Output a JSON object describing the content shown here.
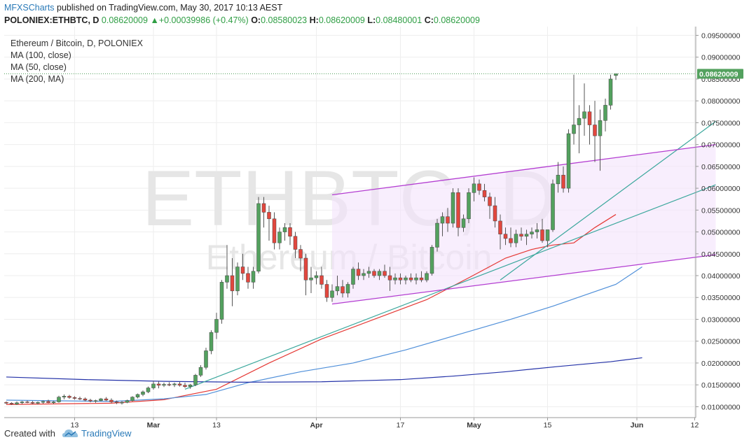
{
  "header": {
    "publisher": "MFXSCharts",
    "published_text": "published on TradingView.com, May 30, 2017 10:13 AEST",
    "symbol": "POLONIEX:ETHBTC, D",
    "price": "0.08620009",
    "change": "+0.00039986 (+0.47%)",
    "o_label": "O:",
    "o_value": "0.08580023",
    "h_label": "H:",
    "h_value": "0.08620009",
    "l_label": "L:",
    "l_value": "0.08480001",
    "c_label": "C:",
    "c_value": "0.08620009"
  },
  "legend": {
    "title": "Ethereum / Bitcoin, D, POLONIEX",
    "ma100": "MA (100, close)",
    "ma50": "MA (50, close)",
    "ma200": "MA (200, MA)"
  },
  "watermark": {
    "big": "ETHBTC, D",
    "small": "Ethereum / Bitcoin"
  },
  "footer": {
    "created_with": "Created with",
    "brand": "TradingView"
  },
  "colors": {
    "up": "#53a15e",
    "down": "#e2473e",
    "ma20": "#e53935",
    "ma50": "#4f8fd9",
    "ma200": "#2432a8",
    "trend": "#3aa79c",
    "channel": "#b33dd1",
    "channel_fill": "#f3e3fb",
    "last_price_bg": "#53a15e"
  },
  "chart_data": {
    "type": "candlestick",
    "title": "Ethereum / Bitcoin, D, POLONIEX",
    "y_range": [
      0.0075,
      0.097
    ],
    "y_ticks": [
      "0.09500000",
      "0.09000000",
      "0.08500000",
      "0.08000000",
      "0.07500000",
      "0.07000000",
      "0.06500000",
      "0.06000000",
      "0.05500000",
      "0.05000000",
      "0.04500000",
      "0.04000000",
      "0.03500000",
      "0.03000000",
      "0.02500000",
      "0.02000000",
      "0.01500000",
      "0.01000000"
    ],
    "last_price": "0.08620009",
    "x_labels": [
      {
        "label": "13",
        "bold": false,
        "day": 13
      },
      {
        "label": "Mar",
        "bold": true,
        "day": 28
      },
      {
        "label": "13",
        "bold": false,
        "day": 40
      },
      {
        "label": "Apr",
        "bold": true,
        "day": 59
      },
      {
        "label": "17",
        "bold": false,
        "day": 75
      },
      {
        "label": "May",
        "bold": true,
        "day": 89
      },
      {
        "label": "15",
        "bold": false,
        "day": 103
      },
      {
        "label": "Jun",
        "bold": true,
        "day": 120
      },
      {
        "label": "12",
        "bold": false,
        "day": 131
      }
    ],
    "date_axis": {
      "start": "2017-02-01",
      "end": "2017-06-15"
    },
    "candles": [
      [
        0.011,
        0.0112,
        0.0106,
        0.0108
      ],
      [
        0.0108,
        0.011,
        0.0104,
        0.0106
      ],
      [
        0.0106,
        0.0112,
        0.0104,
        0.0109
      ],
      [
        0.0109,
        0.0113,
        0.0106,
        0.0111
      ],
      [
        0.0111,
        0.0114,
        0.0108,
        0.011
      ],
      [
        0.011,
        0.0113,
        0.0106,
        0.0108
      ],
      [
        0.0108,
        0.0112,
        0.0105,
        0.011
      ],
      [
        0.011,
        0.0114,
        0.0107,
        0.0112
      ],
      [
        0.0112,
        0.0116,
        0.0108,
        0.0109
      ],
      [
        0.0109,
        0.0113,
        0.0106,
        0.0111
      ],
      [
        0.0111,
        0.0125,
        0.0109,
        0.0122
      ],
      [
        0.0122,
        0.0128,
        0.0117,
        0.0124
      ],
      [
        0.0124,
        0.0127,
        0.0118,
        0.0121
      ],
      [
        0.0121,
        0.0124,
        0.0116,
        0.0119
      ],
      [
        0.0119,
        0.0123,
        0.0115,
        0.0118
      ],
      [
        0.0118,
        0.0121,
        0.0112,
        0.0115
      ],
      [
        0.0115,
        0.0118,
        0.011,
        0.0113
      ],
      [
        0.0113,
        0.0116,
        0.0109,
        0.0114
      ],
      [
        0.0114,
        0.012,
        0.0112,
        0.0118
      ],
      [
        0.0118,
        0.0122,
        0.0113,
        0.0115
      ],
      [
        0.0115,
        0.0119,
        0.0108,
        0.0111
      ],
      [
        0.0111,
        0.0114,
        0.0106,
        0.0109
      ],
      [
        0.0109,
        0.0113,
        0.0105,
        0.011
      ],
      [
        0.011,
        0.0116,
        0.0108,
        0.0114
      ],
      [
        0.0114,
        0.0124,
        0.0112,
        0.0122
      ],
      [
        0.0122,
        0.013,
        0.0119,
        0.0128
      ],
      [
        0.0128,
        0.0137,
        0.0124,
        0.0134
      ],
      [
        0.0134,
        0.0146,
        0.0131,
        0.0143
      ],
      [
        0.0143,
        0.0159,
        0.0139,
        0.0152
      ],
      [
        0.0152,
        0.0158,
        0.0142,
        0.0149
      ],
      [
        0.0149,
        0.0155,
        0.0145,
        0.0151
      ],
      [
        0.0151,
        0.0156,
        0.0147,
        0.015
      ],
      [
        0.015,
        0.0155,
        0.0145,
        0.0152
      ],
      [
        0.0152,
        0.0157,
        0.0146,
        0.0149
      ],
      [
        0.0149,
        0.0155,
        0.0143,
        0.0146
      ],
      [
        0.0146,
        0.0152,
        0.0141,
        0.015
      ],
      [
        0.015,
        0.0175,
        0.0147,
        0.0172
      ],
      [
        0.0172,
        0.0195,
        0.0168,
        0.019
      ],
      [
        0.019,
        0.0235,
        0.0185,
        0.0228
      ],
      [
        0.0228,
        0.0275,
        0.022,
        0.027
      ],
      [
        0.027,
        0.0315,
        0.0255,
        0.03
      ],
      [
        0.03,
        0.039,
        0.029,
        0.0385
      ],
      [
        0.0385,
        0.047,
        0.037,
        0.04
      ],
      [
        0.04,
        0.044,
        0.033,
        0.0365
      ],
      [
        0.0365,
        0.043,
        0.0355,
        0.042
      ],
      [
        0.042,
        0.045,
        0.039,
        0.0405
      ],
      [
        0.0405,
        0.042,
        0.037,
        0.0385
      ],
      [
        0.0385,
        0.042,
        0.037,
        0.041
      ],
      [
        0.041,
        0.058,
        0.0405,
        0.0565
      ],
      [
        0.0565,
        0.058,
        0.051,
        0.0545
      ],
      [
        0.0545,
        0.056,
        0.048,
        0.053
      ],
      [
        0.053,
        0.0545,
        0.046,
        0.0475
      ],
      [
        0.0475,
        0.051,
        0.046,
        0.05
      ],
      [
        0.05,
        0.052,
        0.048,
        0.051
      ],
      [
        0.051,
        0.052,
        0.047,
        0.049
      ],
      [
        0.049,
        0.05,
        0.044,
        0.046
      ],
      [
        0.046,
        0.047,
        0.041,
        0.044
      ],
      [
        0.044,
        0.045,
        0.0355,
        0.039
      ],
      [
        0.039,
        0.042,
        0.036,
        0.0395
      ],
      [
        0.0395,
        0.041,
        0.038,
        0.04
      ],
      [
        0.04,
        0.042,
        0.037,
        0.038
      ],
      [
        0.038,
        0.039,
        0.034,
        0.035
      ],
      [
        0.035,
        0.038,
        0.034,
        0.0365
      ],
      [
        0.0365,
        0.04,
        0.0355,
        0.0375
      ],
      [
        0.0375,
        0.039,
        0.035,
        0.036
      ],
      [
        0.036,
        0.0385,
        0.035,
        0.038
      ],
      [
        0.038,
        0.042,
        0.037,
        0.0415
      ],
      [
        0.0415,
        0.043,
        0.039,
        0.04
      ],
      [
        0.04,
        0.0415,
        0.039,
        0.0405
      ],
      [
        0.0405,
        0.042,
        0.0395,
        0.041
      ],
      [
        0.041,
        0.0415,
        0.0395,
        0.04
      ],
      [
        0.04,
        0.0415,
        0.039,
        0.041
      ],
      [
        0.041,
        0.0425,
        0.0395,
        0.04
      ],
      [
        0.04,
        0.042,
        0.0365,
        0.039
      ],
      [
        0.039,
        0.0405,
        0.038,
        0.0395
      ],
      [
        0.0395,
        0.0405,
        0.038,
        0.039
      ],
      [
        0.039,
        0.04,
        0.038,
        0.0395
      ],
      [
        0.0395,
        0.0405,
        0.0385,
        0.039
      ],
      [
        0.039,
        0.0405,
        0.038,
        0.0395
      ],
      [
        0.0395,
        0.041,
        0.0385,
        0.039
      ],
      [
        0.039,
        0.041,
        0.0385,
        0.0405
      ],
      [
        0.0405,
        0.047,
        0.04,
        0.0465
      ],
      [
        0.0465,
        0.053,
        0.0455,
        0.052
      ],
      [
        0.052,
        0.0545,
        0.049,
        0.0535
      ],
      [
        0.0535,
        0.0555,
        0.05,
        0.052
      ],
      [
        0.052,
        0.06,
        0.051,
        0.059
      ],
      [
        0.059,
        0.06,
        0.049,
        0.051
      ],
      [
        0.051,
        0.054,
        0.05,
        0.053
      ],
      [
        0.053,
        0.06,
        0.052,
        0.059
      ],
      [
        0.059,
        0.0625,
        0.057,
        0.061
      ],
      [
        0.061,
        0.062,
        0.0585,
        0.0595
      ],
      [
        0.0595,
        0.061,
        0.057,
        0.058
      ],
      [
        0.058,
        0.059,
        0.053,
        0.056
      ],
      [
        0.056,
        0.058,
        0.051,
        0.0525
      ],
      [
        0.0525,
        0.054,
        0.046,
        0.0495
      ],
      [
        0.0495,
        0.051,
        0.047,
        0.0485
      ],
      [
        0.0485,
        0.051,
        0.0465,
        0.0475
      ],
      [
        0.0475,
        0.0505,
        0.0465,
        0.0495
      ],
      [
        0.0495,
        0.051,
        0.048,
        0.049
      ],
      [
        0.049,
        0.0505,
        0.047,
        0.0495
      ],
      [
        0.0495,
        0.051,
        0.0485,
        0.05
      ],
      [
        0.05,
        0.052,
        0.0485,
        0.0505
      ],
      [
        0.0505,
        0.053,
        0.0475,
        0.048
      ],
      [
        0.048,
        0.05,
        0.0465,
        0.0505
      ],
      [
        0.0505,
        0.062,
        0.05,
        0.061
      ],
      [
        0.061,
        0.066,
        0.059,
        0.063
      ],
      [
        0.063,
        0.065,
        0.059,
        0.06
      ],
      [
        0.06,
        0.0735,
        0.059,
        0.0725
      ],
      [
        0.0725,
        0.086,
        0.07,
        0.0745
      ],
      [
        0.0745,
        0.079,
        0.068,
        0.076
      ],
      [
        0.076,
        0.084,
        0.072,
        0.0775
      ],
      [
        0.0775,
        0.079,
        0.07,
        0.0745
      ],
      [
        0.0745,
        0.08,
        0.066,
        0.072
      ],
      [
        0.072,
        0.078,
        0.064,
        0.0755
      ],
      [
        0.0755,
        0.0805,
        0.073,
        0.079
      ],
      [
        0.079,
        0.086,
        0.078,
        0.085
      ],
      [
        0.0858,
        0.0862,
        0.0848,
        0.0862
      ]
    ],
    "moving_averages": [
      {
        "name": "MA (100, close)",
        "color": "#e53935",
        "points": [
          [
            0,
            0.0105
          ],
          [
            20,
            0.0108
          ],
          [
            30,
            0.0116
          ],
          [
            40,
            0.014
          ],
          [
            50,
            0.02
          ],
          [
            60,
            0.0255
          ],
          [
            70,
            0.03
          ],
          [
            80,
            0.0345
          ],
          [
            88,
            0.0395
          ],
          [
            95,
            0.044
          ],
          [
            100,
            0.046
          ],
          [
            104,
            0.047
          ],
          [
            108,
            0.0475
          ],
          [
            112,
            0.051
          ],
          [
            116,
            0.054
          ]
        ]
      },
      {
        "name": "MA (50, close)",
        "color": "#4f8fd9",
        "points": [
          [
            0,
            0.0115
          ],
          [
            20,
            0.0112
          ],
          [
            30,
            0.0118
          ],
          [
            38,
            0.0128
          ],
          [
            46,
            0.0155
          ],
          [
            56,
            0.018
          ],
          [
            66,
            0.02
          ],
          [
            76,
            0.023
          ],
          [
            86,
            0.0265
          ],
          [
            96,
            0.03
          ],
          [
            104,
            0.033
          ],
          [
            110,
            0.0355
          ],
          [
            116,
            0.038
          ],
          [
            121,
            0.042
          ]
        ]
      },
      {
        "name": "MA (200, MA)",
        "color": "#2432a8",
        "points": [
          [
            0,
            0.0168
          ],
          [
            15,
            0.0162
          ],
          [
            30,
            0.0158
          ],
          [
            45,
            0.0156
          ],
          [
            60,
            0.0157
          ],
          [
            75,
            0.0162
          ],
          [
            85,
            0.017
          ],
          [
            95,
            0.018
          ],
          [
            105,
            0.0192
          ],
          [
            115,
            0.0203
          ],
          [
            121,
            0.0212
          ]
        ]
      }
    ],
    "trendlines": [
      {
        "name": "trend-1",
        "points": [
          [
            34,
            0.014
          ],
          [
            135,
            0.0608
          ]
        ]
      },
      {
        "name": "trend-2",
        "points": [
          [
            94,
            0.039
          ],
          [
            135,
            0.0753
          ]
        ]
      }
    ],
    "channel": {
      "upper": [
        [
          62,
          0.0585
        ],
        [
          135,
          0.07
        ]
      ],
      "lower": [
        [
          62,
          0.0335
        ],
        [
          135,
          0.0448
        ]
      ]
    }
  }
}
